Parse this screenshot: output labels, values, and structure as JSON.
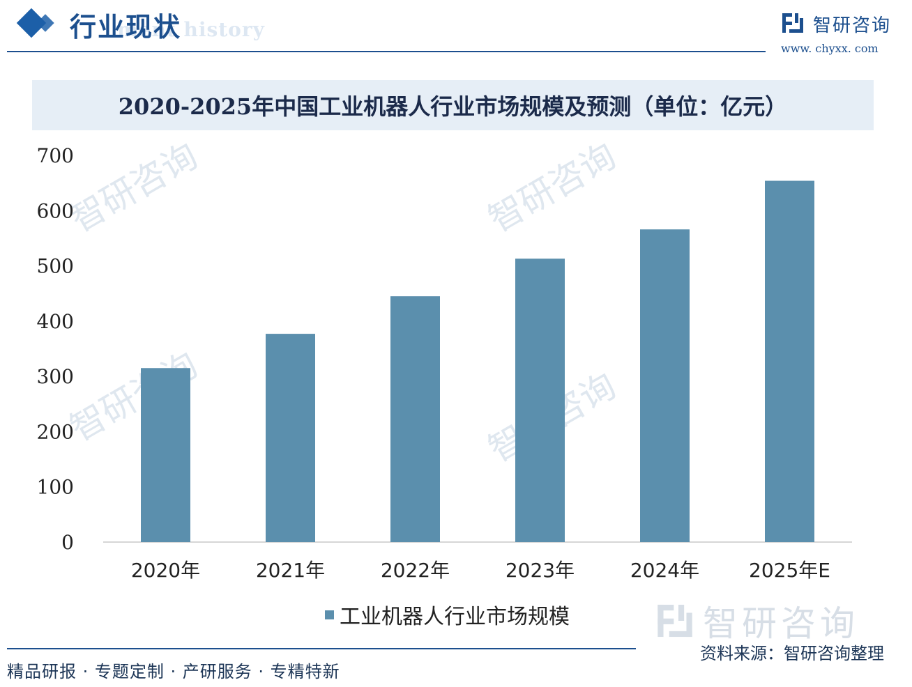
{
  "header": {
    "section_title": "行业现状",
    "section_subtitle": "ment history",
    "brand_name": "智研咨询",
    "brand_url": "www. chyxx. com",
    "brand_logo_icon": "chyxx-logo-icon"
  },
  "footer": {
    "slogan": "精品研报 · 专题定制 · 产研服务 · 专精特新",
    "source": "资料来源：智研咨询整理",
    "watermark": "智研咨询"
  },
  "colors": {
    "bar": "#5b8fad",
    "title_band": "#e6eef6",
    "accent": "#1c4f8e"
  },
  "chart_data": {
    "type": "bar",
    "title": "2020-2025年中国工业机器人行业市场规模及预测（单位：亿元）",
    "categories": [
      "2020年",
      "2021年",
      "2022年",
      "2023年",
      "2024年",
      "2025年E"
    ],
    "series": [
      {
        "name": "工业机器人行业市场规模",
        "values": [
          315,
          377,
          445,
          513,
          566,
          654
        ]
      }
    ],
    "yticks": [
      "0",
      "100",
      "200",
      "300",
      "400",
      "500",
      "600",
      "700"
    ],
    "ylim": [
      0,
      700
    ],
    "grid": false,
    "legend": "bottom-center"
  }
}
